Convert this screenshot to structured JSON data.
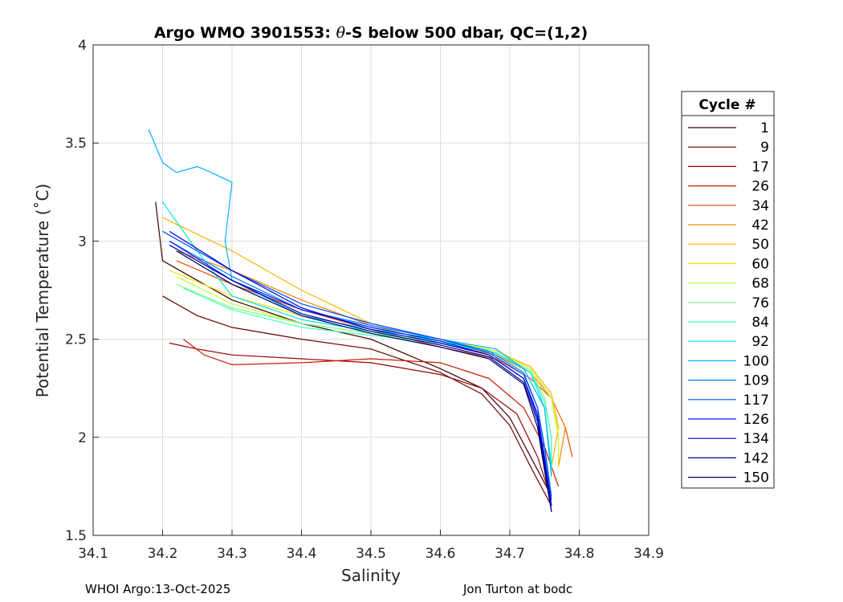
{
  "chart_data": {
    "type": "line",
    "title": "Argo WMO 3901553: θ-S below 500 dbar,  QC=(1,2)",
    "title_parts": {
      "prefix": "Argo WMO 3901553: ",
      "symbol": "θ",
      "suffix": "-S below 500 dbar,  QC=(1,2)"
    },
    "xlabel": "Salinity",
    "ylabel": "Potential Temperature (˚C)",
    "xlim": [
      34.1,
      34.9
    ],
    "ylim": [
      1.5,
      4.0
    ],
    "xticks": [
      "34.1",
      "34.2",
      "34.3",
      "34.4",
      "34.5",
      "34.6",
      "34.7",
      "34.8",
      "34.9"
    ],
    "yticks": [
      "1.5",
      "2",
      "2.5",
      "3",
      "3.5",
      "4"
    ],
    "grid": true,
    "legend": {
      "title": "Cycle #",
      "placement": "right",
      "entries": [
        {
          "label": "1",
          "color": "#3d0000"
        },
        {
          "label": "9",
          "color": "#6b0000"
        },
        {
          "label": "17",
          "color": "#9a0000"
        },
        {
          "label": "26",
          "color": "#cc1a00"
        },
        {
          "label": "34",
          "color": "#ee4a00"
        },
        {
          "label": "42",
          "color": "#ff8000"
        },
        {
          "label": "50",
          "color": "#ffb300"
        },
        {
          "label": "60",
          "color": "#f2e600"
        },
        {
          "label": "68",
          "color": "#bfff3f"
        },
        {
          "label": "76",
          "color": "#80ff80"
        },
        {
          "label": "84",
          "color": "#40ffbf"
        },
        {
          "label": "92",
          "color": "#00e6e6"
        },
        {
          "label": "100",
          "color": "#00b3ff"
        },
        {
          "label": "109",
          "color": "#0080ff"
        },
        {
          "label": "117",
          "color": "#004dff"
        },
        {
          "label": "126",
          "color": "#0019ff"
        },
        {
          "label": "134",
          "color": "#0000cc"
        },
        {
          "label": "142",
          "color": "#000099"
        },
        {
          "label": "150",
          "color": "#000066"
        }
      ]
    },
    "series": [
      {
        "name": "1",
        "color": "#3d0000",
        "x": [
          34.19,
          34.2,
          34.25,
          34.3,
          34.4,
          34.5,
          34.6,
          34.66,
          34.7,
          34.73,
          34.76
        ],
        "y": [
          3.2,
          2.9,
          2.8,
          2.7,
          2.58,
          2.5,
          2.35,
          2.25,
          2.1,
          1.9,
          1.7
        ]
      },
      {
        "name": "9",
        "color": "#6b0000",
        "x": [
          34.2,
          34.25,
          34.3,
          34.4,
          34.5,
          34.6,
          34.66,
          34.7,
          34.73,
          34.76
        ],
        "y": [
          2.72,
          2.62,
          2.56,
          2.5,
          2.45,
          2.33,
          2.22,
          2.06,
          1.85,
          1.65
        ]
      },
      {
        "name": "17",
        "color": "#9a0000",
        "x": [
          34.21,
          34.25,
          34.3,
          34.4,
          34.5,
          34.6,
          34.66,
          34.71,
          34.74,
          34.76
        ],
        "y": [
          2.48,
          2.45,
          2.42,
          2.4,
          2.38,
          2.32,
          2.25,
          2.12,
          1.9,
          1.68
        ]
      },
      {
        "name": "26",
        "color": "#cc1a00",
        "x": [
          34.23,
          34.26,
          34.3,
          34.4,
          34.5,
          34.6,
          34.67,
          34.72,
          34.75,
          34.77
        ],
        "y": [
          2.5,
          2.42,
          2.37,
          2.38,
          2.4,
          2.38,
          2.3,
          2.15,
          1.95,
          1.75
        ]
      },
      {
        "name": "34",
        "color": "#ee4a00",
        "x": [
          34.22,
          34.3,
          34.4,
          34.5,
          34.6,
          34.68,
          34.73,
          34.76,
          34.78,
          34.79
        ],
        "y": [
          2.9,
          2.78,
          2.65,
          2.55,
          2.46,
          2.4,
          2.3,
          2.2,
          2.05,
          1.9
        ]
      },
      {
        "name": "42",
        "color": "#ff8000",
        "x": [
          34.22,
          34.3,
          34.4,
          34.5,
          34.6,
          34.68,
          34.73,
          34.76,
          34.78,
          34.77
        ],
        "y": [
          2.95,
          2.85,
          2.7,
          2.57,
          2.48,
          2.42,
          2.33,
          2.2,
          2.05,
          1.85
        ]
      },
      {
        "name": "50",
        "color": "#ffb300",
        "x": [
          34.2,
          34.3,
          34.4,
          34.5,
          34.6,
          34.68,
          34.73,
          34.76,
          34.77,
          34.76
        ],
        "y": [
          3.12,
          2.95,
          2.75,
          2.58,
          2.5,
          2.44,
          2.36,
          2.22,
          2.05,
          1.85
        ]
      },
      {
        "name": "60",
        "color": "#f2e600",
        "x": [
          34.21,
          34.3,
          34.4,
          34.5,
          34.6,
          34.68,
          34.73,
          34.76,
          34.77,
          34.77
        ],
        "y": [
          2.85,
          2.72,
          2.62,
          2.55,
          2.5,
          2.44,
          2.35,
          2.2,
          2.0,
          1.85
        ]
      },
      {
        "name": "68",
        "color": "#bfff3f",
        "x": [
          34.22,
          34.3,
          34.4,
          34.5,
          34.6,
          34.68,
          34.73,
          34.76,
          34.77,
          34.77
        ],
        "y": [
          2.82,
          2.68,
          2.58,
          2.53,
          2.49,
          2.44,
          2.35,
          2.2,
          2.02,
          1.9
        ]
      },
      {
        "name": "76",
        "color": "#80ff80",
        "x": [
          34.22,
          34.3,
          34.4,
          34.5,
          34.6,
          34.68,
          34.73,
          34.75,
          34.76,
          34.76
        ],
        "y": [
          2.78,
          2.66,
          2.58,
          2.53,
          2.48,
          2.43,
          2.34,
          2.2,
          2.0,
          1.85
        ]
      },
      {
        "name": "84",
        "color": "#40ffbf",
        "x": [
          34.23,
          34.3,
          34.4,
          34.5,
          34.6,
          34.68,
          34.73,
          34.75,
          34.76,
          34.76
        ],
        "y": [
          2.76,
          2.65,
          2.56,
          2.52,
          2.48,
          2.43,
          2.33,
          2.18,
          2.0,
          1.8
        ]
      },
      {
        "name": "92",
        "color": "#00e6e6",
        "x": [
          34.2,
          34.25,
          34.3,
          34.4,
          34.5,
          34.6,
          34.68,
          34.73,
          34.75,
          34.76
        ],
        "y": [
          3.2,
          2.95,
          2.72,
          2.6,
          2.54,
          2.49,
          2.43,
          2.33,
          2.15,
          1.85
        ]
      },
      {
        "name": "100",
        "color": "#00b3ff",
        "x": [
          34.18,
          34.2,
          34.22,
          34.25,
          34.27,
          34.3,
          34.29,
          34.3,
          34.4,
          34.5,
          34.6,
          34.68,
          34.72,
          34.75,
          34.76
        ],
        "y": [
          3.57,
          3.4,
          3.35,
          3.38,
          3.35,
          3.3,
          3.0,
          2.8,
          2.62,
          2.55,
          2.5,
          2.45,
          2.35,
          2.15,
          1.8
        ]
      },
      {
        "name": "109",
        "color": "#0080ff",
        "x": [
          34.21,
          34.3,
          34.4,
          34.5,
          34.6,
          34.67,
          34.72,
          34.74,
          34.75,
          34.76
        ],
        "y": [
          3.0,
          2.82,
          2.65,
          2.57,
          2.5,
          2.44,
          2.33,
          2.15,
          1.95,
          1.7
        ]
      },
      {
        "name": "117",
        "color": "#004dff",
        "x": [
          34.2,
          34.3,
          34.4,
          34.5,
          34.6,
          34.67,
          34.72,
          34.74,
          34.75,
          34.76
        ],
        "y": [
          3.05,
          2.85,
          2.68,
          2.58,
          2.5,
          2.43,
          2.32,
          2.15,
          1.95,
          1.68
        ]
      },
      {
        "name": "126",
        "color": "#0019ff",
        "x": [
          34.21,
          34.3,
          34.4,
          34.5,
          34.6,
          34.67,
          34.72,
          34.74,
          34.75,
          34.76
        ],
        "y": [
          3.0,
          2.8,
          2.65,
          2.56,
          2.49,
          2.42,
          2.3,
          2.12,
          1.9,
          1.65
        ]
      },
      {
        "name": "134",
        "color": "#0000cc",
        "x": [
          34.21,
          34.3,
          34.4,
          34.5,
          34.6,
          34.67,
          34.72,
          34.74,
          34.75,
          34.76
        ],
        "y": [
          3.05,
          2.85,
          2.66,
          2.55,
          2.48,
          2.42,
          2.3,
          2.1,
          1.88,
          1.65
        ]
      },
      {
        "name": "142",
        "color": "#000099",
        "x": [
          34.21,
          34.3,
          34.4,
          34.5,
          34.6,
          34.67,
          34.72,
          34.74,
          34.75,
          34.76
        ],
        "y": [
          2.98,
          2.8,
          2.63,
          2.54,
          2.47,
          2.41,
          2.28,
          2.08,
          1.85,
          1.62
        ]
      },
      {
        "name": "150",
        "color": "#000066",
        "x": [
          34.22,
          34.3,
          34.4,
          34.5,
          34.6,
          34.67,
          34.72,
          34.74,
          34.75,
          34.76
        ],
        "y": [
          2.95,
          2.78,
          2.62,
          2.53,
          2.46,
          2.4,
          2.27,
          2.05,
          1.83,
          1.62
        ]
      }
    ]
  },
  "footer": {
    "left": "WHOI Argo:13-Oct-2025",
    "right": "Jon Turton at bodc"
  }
}
